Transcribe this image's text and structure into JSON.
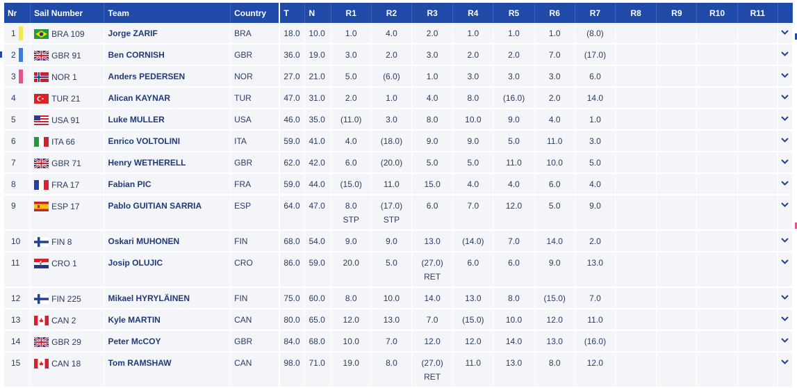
{
  "headers": [
    "Nr",
    "Sail Number",
    "Team",
    "Country",
    "T",
    "N",
    "R1",
    "R2",
    "R3",
    "R4",
    "R5",
    "R6",
    "R7",
    "R8",
    "R9",
    "R10",
    "R11"
  ],
  "colors": {
    "header_bg": "#1f4aa8",
    "row_bg": "#f4f5f8",
    "text": "#2a3a60"
  },
  "rows": [
    {
      "nr": "1",
      "mark": "#f5e84a",
      "flag": "BRA",
      "sail": "BRA 109",
      "team": "Jorge ZARIF",
      "country": "BRA",
      "t": "18.0",
      "n": "10.0",
      "r": [
        "1.0",
        "4.0",
        "2.0",
        "1.0",
        "1.0",
        "1.0",
        "(8.0)",
        "",
        "",
        "",
        ""
      ],
      "sub": [
        "",
        "",
        "",
        "",
        "",
        "",
        "",
        "",
        "",
        "",
        ""
      ]
    },
    {
      "nr": "2",
      "mark": "#3a7be0",
      "flag": "GBR",
      "sail": "GBR 91",
      "team": "Ben CORNISH",
      "country": "GBR",
      "t": "36.0",
      "n": "19.0",
      "r": [
        "3.0",
        "2.0",
        "3.0",
        "2.0",
        "2.0",
        "7.0",
        "(17.0)",
        "",
        "",
        "",
        ""
      ],
      "sub": [
        "",
        "",
        "",
        "",
        "",
        "",
        "",
        "",
        "",
        "",
        ""
      ]
    },
    {
      "nr": "3",
      "mark": "#e8508f",
      "flag": "NOR",
      "sail": "NOR 1",
      "team": "Anders PEDERSEN",
      "country": "NOR",
      "t": "27.0",
      "n": "21.0",
      "r": [
        "5.0",
        "(6.0)",
        "1.0",
        "3.0",
        "3.0",
        "3.0",
        "6.0",
        "",
        "",
        "",
        ""
      ],
      "sub": [
        "",
        "",
        "",
        "",
        "",
        "",
        "",
        "",
        "",
        "",
        ""
      ]
    },
    {
      "nr": "4",
      "mark": "",
      "flag": "TUR",
      "sail": "TUR 21",
      "team": "Alican KAYNAR",
      "country": "TUR",
      "t": "47.0",
      "n": "31.0",
      "r": [
        "2.0",
        "1.0",
        "4.0",
        "8.0",
        "(16.0)",
        "2.0",
        "14.0",
        "",
        "",
        "",
        ""
      ],
      "sub": [
        "",
        "",
        "",
        "",
        "",
        "",
        "",
        "",
        "",
        "",
        ""
      ]
    },
    {
      "nr": "5",
      "mark": "",
      "flag": "USA",
      "sail": "USA 91",
      "team": "Luke MULLER",
      "country": "USA",
      "t": "46.0",
      "n": "35.0",
      "r": [
        "(11.0)",
        "3.0",
        "8.0",
        "10.0",
        "9.0",
        "4.0",
        "1.0",
        "",
        "",
        "",
        ""
      ],
      "sub": [
        "",
        "",
        "",
        "",
        "",
        "",
        "",
        "",
        "",
        "",
        ""
      ]
    },
    {
      "nr": "6",
      "mark": "",
      "flag": "ITA",
      "sail": "ITA 66",
      "team": "Enrico VOLTOLINI",
      "country": "ITA",
      "t": "59.0",
      "n": "41.0",
      "r": [
        "4.0",
        "(18.0)",
        "9.0",
        "9.0",
        "5.0",
        "11.0",
        "3.0",
        "",
        "",
        "",
        ""
      ],
      "sub": [
        "",
        "",
        "",
        "",
        "",
        "",
        "",
        "",
        "",
        "",
        ""
      ]
    },
    {
      "nr": "7",
      "mark": "",
      "flag": "GBR",
      "sail": "GBR 71",
      "team": "Henry WETHERELL",
      "country": "GBR",
      "t": "62.0",
      "n": "42.0",
      "r": [
        "6.0",
        "(20.0)",
        "5.0",
        "5.0",
        "11.0",
        "10.0",
        "5.0",
        "",
        "",
        "",
        ""
      ],
      "sub": [
        "",
        "",
        "",
        "",
        "",
        "",
        "",
        "",
        "",
        "",
        ""
      ]
    },
    {
      "nr": "8",
      "mark": "",
      "flag": "FRA",
      "sail": "FRA 17",
      "team": "Fabian PIC",
      "country": "FRA",
      "t": "59.0",
      "n": "44.0",
      "r": [
        "(15.0)",
        "11.0",
        "15.0",
        "4.0",
        "4.0",
        "6.0",
        "4.0",
        "",
        "",
        "",
        ""
      ],
      "sub": [
        "",
        "",
        "",
        "",
        "",
        "",
        "",
        "",
        "",
        "",
        ""
      ]
    },
    {
      "nr": "9",
      "mark": "",
      "flag": "ESP",
      "sail": "ESP 17",
      "team": "Pablo GUITIAN SARRIA",
      "country": "ESP",
      "t": "64.0",
      "n": "47.0",
      "r": [
        "8.0",
        "(17.0)",
        "6.0",
        "7.0",
        "12.0",
        "5.0",
        "9.0",
        "",
        "",
        "",
        ""
      ],
      "sub": [
        "STP",
        "STP",
        "",
        "",
        "",
        "",
        "",
        "",
        "",
        "",
        ""
      ]
    },
    {
      "nr": "10",
      "mark": "",
      "flag": "FIN",
      "sail": "FIN 8",
      "team": "Oskari MUHONEN",
      "country": "FIN",
      "t": "68.0",
      "n": "54.0",
      "r": [
        "9.0",
        "9.0",
        "13.0",
        "(14.0)",
        "7.0",
        "14.0",
        "2.0",
        "",
        "",
        "",
        ""
      ],
      "sub": [
        "",
        "",
        "",
        "",
        "",
        "",
        "",
        "",
        "",
        "",
        ""
      ]
    },
    {
      "nr": "11",
      "mark": "",
      "flag": "CRO",
      "sail": "CRO 1",
      "team": "Josip OLUJIC",
      "country": "CRO",
      "t": "86.0",
      "n": "59.0",
      "r": [
        "20.0",
        "5.0",
        "(27.0)",
        "6.0",
        "6.0",
        "9.0",
        "13.0",
        "",
        "",
        "",
        ""
      ],
      "sub": [
        "",
        "",
        "RET",
        "",
        "",
        "",
        "",
        "",
        "",
        "",
        ""
      ]
    },
    {
      "nr": "12",
      "mark": "",
      "flag": "FIN",
      "sail": "FIN 225",
      "team": "Mikael HYRYLÄINEN",
      "country": "FIN",
      "t": "75.0",
      "n": "60.0",
      "r": [
        "8.0",
        "10.0",
        "14.0",
        "13.0",
        "8.0",
        "(15.0)",
        "7.0",
        "",
        "",
        "",
        ""
      ],
      "sub": [
        "",
        "",
        "",
        "",
        "",
        "",
        "",
        "",
        "",
        "",
        ""
      ]
    },
    {
      "nr": "13",
      "mark": "",
      "flag": "CAN",
      "sail": "CAN 2",
      "team": "Kyle MARTIN",
      "country": "CAN",
      "t": "80.0",
      "n": "65.0",
      "r": [
        "12.0",
        "13.0",
        "7.0",
        "(15.0)",
        "10.0",
        "12.0",
        "11.0",
        "",
        "",
        "",
        ""
      ],
      "sub": [
        "",
        "",
        "",
        "",
        "",
        "",
        "",
        "",
        "",
        "",
        ""
      ]
    },
    {
      "nr": "14",
      "mark": "",
      "flag": "GBR",
      "sail": "GBR 29",
      "team": "Peter McCOY",
      "country": "GBR",
      "t": "84.0",
      "n": "68.0",
      "r": [
        "10.0",
        "7.0",
        "12.0",
        "12.0",
        "14.0",
        "13.0",
        "(16.0)",
        "",
        "",
        "",
        ""
      ],
      "sub": [
        "",
        "",
        "",
        "",
        "",
        "",
        "",
        "",
        "",
        "",
        ""
      ]
    },
    {
      "nr": "15",
      "mark": "",
      "flag": "CAN",
      "sail": "CAN 18",
      "team": "Tom RAMSHAW",
      "country": "CAN",
      "t": "98.0",
      "n": "71.0",
      "r": [
        "19.0",
        "8.0",
        "(27.0)",
        "11.0",
        "13.0",
        "8.0",
        "12.0",
        "",
        "",
        "",
        ""
      ],
      "sub": [
        "",
        "",
        "RET",
        "",
        "",
        "",
        "",
        "",
        "",
        "",
        ""
      ]
    }
  ]
}
